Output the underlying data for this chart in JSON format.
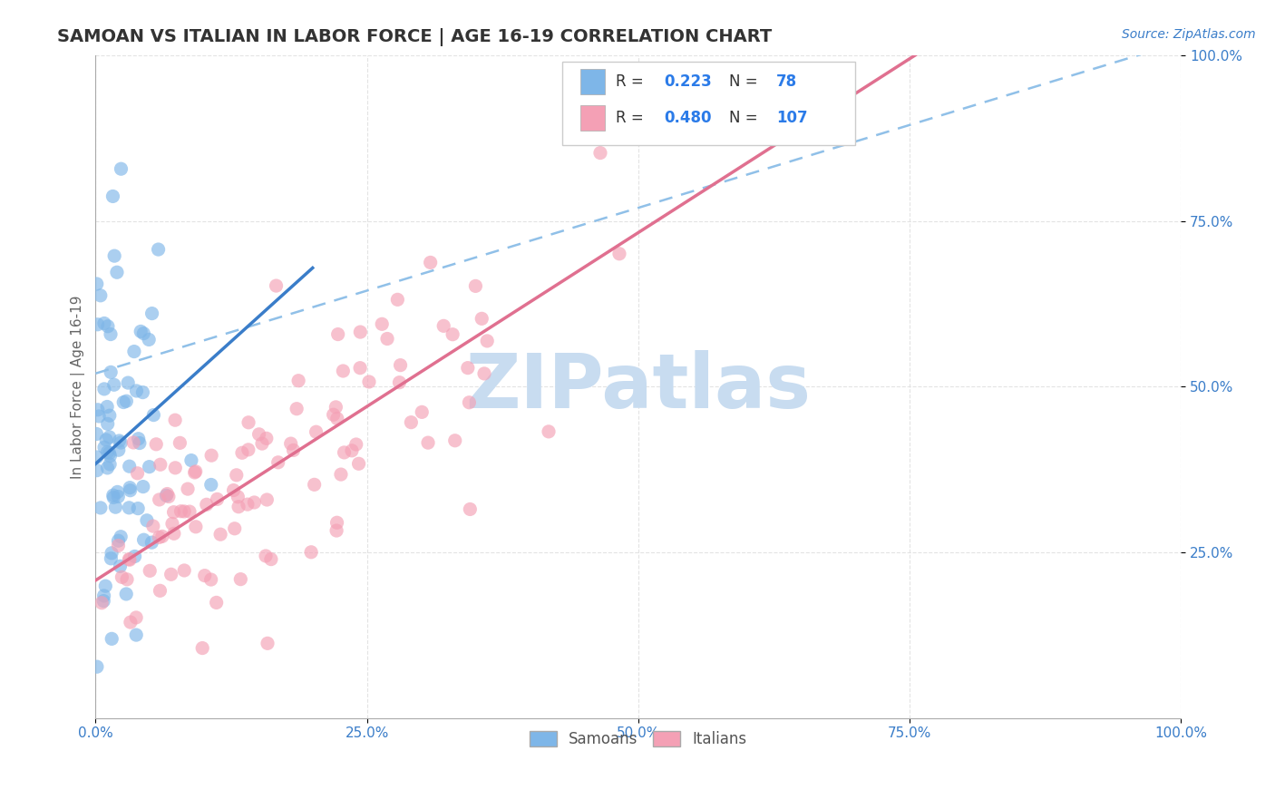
{
  "title": "SAMOAN VS ITALIAN IN LABOR FORCE | AGE 16-19 CORRELATION CHART",
  "source_text": "Source: ZipAtlas.com",
  "ylabel": "In Labor Force | Age 16-19",
  "xlim": [
    0.0,
    1.0
  ],
  "ylim": [
    0.0,
    1.0
  ],
  "samoan_color": "#7EB6E8",
  "italian_color": "#F4A0B5",
  "samoan_line_color": "#3A7DC9",
  "italian_line_color": "#E07090",
  "dash_line_color": "#90C0E8",
  "samoan_R": 0.223,
  "samoan_N": 78,
  "italian_R": 0.48,
  "italian_N": 107,
  "legend_value_color": "#2B7BE8",
  "legend_label_color": "#333333",
  "watermark": "ZIPatlas",
  "watermark_color": "#C8DCF0",
  "background_color": "#FFFFFF",
  "grid_color": "#DDDDDD",
  "title_color": "#333333",
  "axis_tick_color": "#3A7DC9"
}
